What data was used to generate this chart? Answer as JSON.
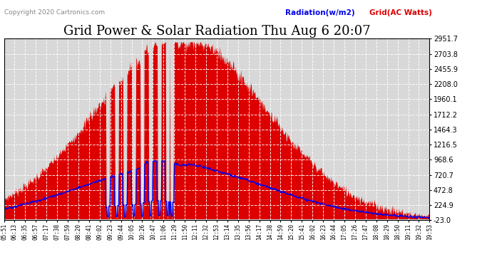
{
  "title": "Grid Power & Solar Radiation Thu Aug 6 20:07",
  "copyright": "Copyright 2020 Cartronics.com",
  "legend_radiation": "Radiation(w/m2)",
  "legend_grid": "Grid(AC Watts)",
  "ylabel_right_ticks": [
    2951.7,
    2703.8,
    2455.9,
    2208.0,
    1960.1,
    1712.2,
    1464.3,
    1216.5,
    968.6,
    720.7,
    472.8,
    224.9,
    -23.0
  ],
  "ymin": -23.0,
  "ymax": 2951.7,
  "bg_color": "#ffffff",
  "plot_bg_color": "#d8d8d8",
  "grid_color": "#ffffff",
  "radiation_color": "#dd0000",
  "grid_ac_color": "#0000ee",
  "title_fontsize": 13,
  "tick_labels": [
    "05:51",
    "06:13",
    "06:35",
    "06:57",
    "07:17",
    "07:38",
    "07:59",
    "08:20",
    "08:41",
    "09:02",
    "09:23",
    "09:44",
    "10:05",
    "10:26",
    "10:47",
    "11:06",
    "11:29",
    "11:50",
    "12:11",
    "12:32",
    "12:53",
    "13:14",
    "13:35",
    "13:56",
    "14:17",
    "14:38",
    "14:59",
    "15:20",
    "15:41",
    "16:02",
    "16:23",
    "16:44",
    "17:05",
    "17:26",
    "17:47",
    "18:08",
    "18:29",
    "18:50",
    "19:11",
    "19:32",
    "19:53"
  ],
  "n_points": 820
}
